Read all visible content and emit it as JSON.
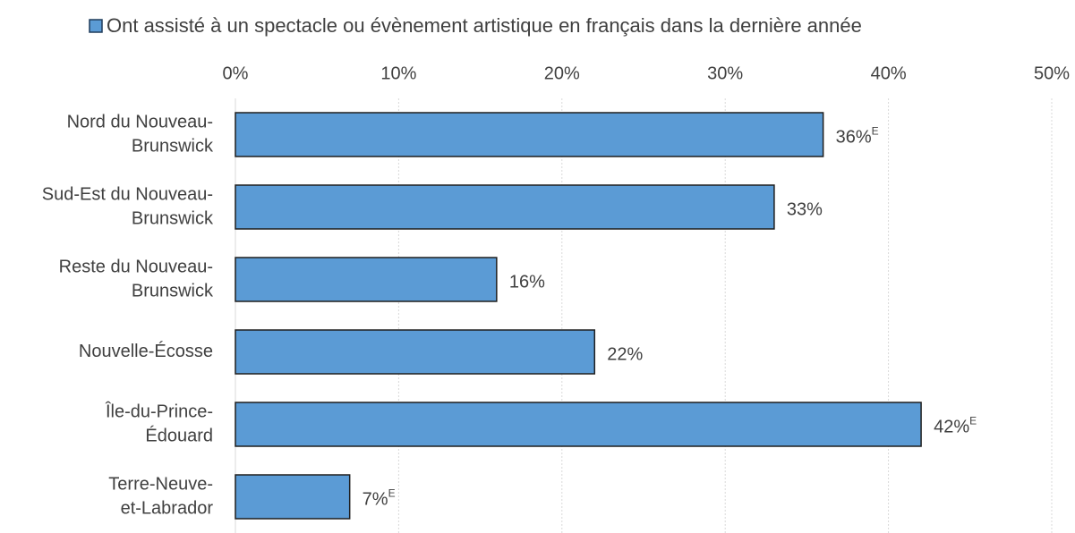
{
  "chart_data": {
    "type": "bar",
    "orientation": "horizontal",
    "categories": [
      [
        "Nord du Nouveau-",
        "Brunswick"
      ],
      [
        "Sud-Est du Nouveau-",
        "Brunswick"
      ],
      [
        "Reste du Nouveau-",
        "Brunswick"
      ],
      [
        "Nouvelle-Écosse"
      ],
      [
        "Île-du-Prince-",
        "Édouard"
      ],
      [
        "Terre-Neuve-",
        "et-Labrador"
      ]
    ],
    "series": [
      {
        "name": "Ont assisté à un spectacle ou évènement artistique en français dans la dernière année",
        "color": "#5b9bd5",
        "values": [
          36,
          33,
          16,
          22,
          42,
          7
        ],
        "value_labels": [
          "36%",
          "33%",
          "16%",
          "22%",
          "42%",
          "7%"
        ],
        "value_label_superscripts": [
          "E",
          null,
          null,
          null,
          "E",
          "E"
        ]
      }
    ],
    "xlim": [
      0,
      50
    ],
    "xticks": [
      {
        "value": 0,
        "label": "0%"
      },
      {
        "value": 10,
        "label": "10%"
      },
      {
        "value": 20,
        "label": "20%"
      },
      {
        "value": 30,
        "label": "30%"
      },
      {
        "value": 40,
        "label": "40%"
      },
      {
        "value": 50,
        "label": "50%"
      }
    ],
    "grid": true,
    "legend": "top"
  }
}
